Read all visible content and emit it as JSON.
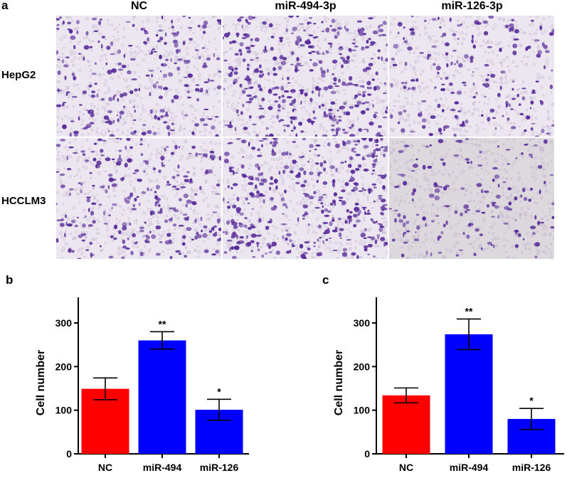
{
  "panel_a": {
    "letter": "a",
    "columns": [
      "NC",
      "miR-494-3p",
      "miR-126-3p"
    ],
    "rows": [
      "HepG2",
      "HCCLM3"
    ],
    "cell_stain_color": "#5a2e9a",
    "background_color": "#ece6f0"
  },
  "colors": {
    "red": "#ff0000",
    "blue": "#0000ff"
  },
  "chart_data": [
    {
      "panel": "b",
      "type": "bar",
      "categories": [
        "NC",
        "miR-494",
        "miR-126"
      ],
      "values": [
        149,
        260,
        101
      ],
      "errors": [
        25,
        20,
        24
      ],
      "significance": [
        "",
        "**",
        "*"
      ],
      "colors": [
        "#ff0000",
        "#0000ff",
        "#0000ff"
      ],
      "ylabel": "Cell number",
      "ylim": [
        0,
        300
      ],
      "yticks": [
        0,
        100,
        200,
        300
      ]
    },
    {
      "panel": "c",
      "type": "bar",
      "categories": [
        "NC",
        "miR-494",
        "miR-126"
      ],
      "values": [
        134,
        274,
        80
      ],
      "errors": [
        17,
        35,
        24
      ],
      "significance": [
        "",
        "**",
        "*"
      ],
      "colors": [
        "#ff0000",
        "#0000ff",
        "#0000ff"
      ],
      "ylabel": "Cell number",
      "ylim": [
        0,
        300
      ],
      "yticks": [
        0,
        100,
        200,
        300
      ]
    }
  ]
}
